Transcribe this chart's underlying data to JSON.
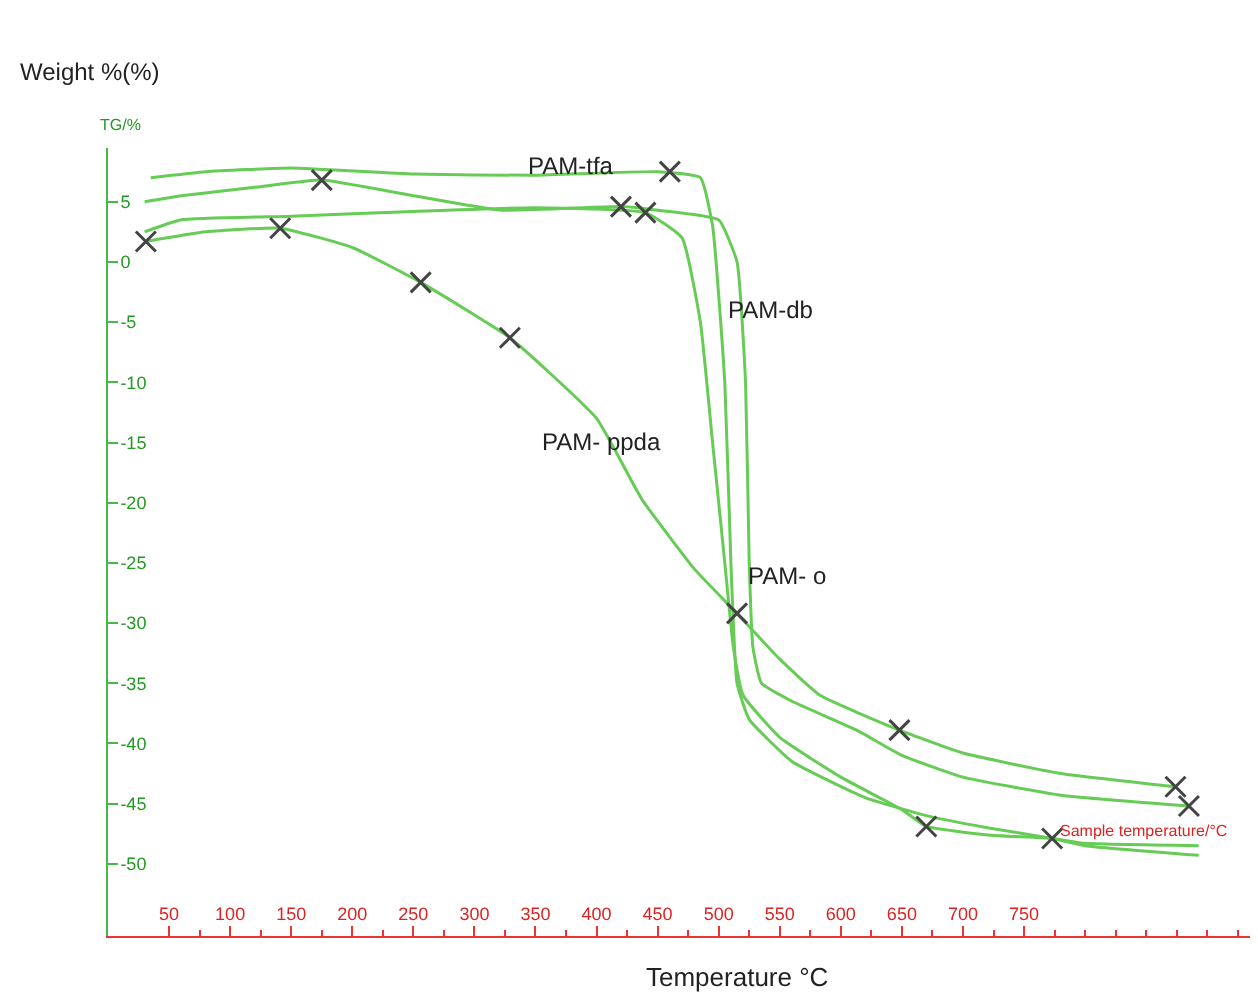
{
  "chart_data": {
    "type": "line",
    "xlabel": "Temperature °C",
    "ylabel": "Weight %(%)",
    "xlim": [
      0,
      935
    ],
    "ylim": [
      -56,
      9.5
    ],
    "xticks": [
      50,
      100,
      150,
      200,
      250,
      300,
      350,
      400,
      450,
      500,
      550,
      600,
      650,
      700,
      750
    ],
    "yticks": [
      5,
      0,
      -5,
      -10,
      -15,
      -20,
      -25,
      -30,
      -35,
      -40,
      -45,
      -50
    ],
    "line_style": "solid",
    "series": [
      {
        "color": "#66cc55",
        "x": [
          35,
          80,
          150,
          250,
          350,
          450,
          485,
          495,
          505,
          510,
          515,
          525,
          560,
          620,
          670,
          720,
          773,
          800,
          893
        ],
        "values": [
          7,
          7.5,
          7.8,
          7.3,
          7.2,
          7.5,
          7,
          3,
          -10,
          -25,
          -35,
          -38,
          -41.5,
          -44.5,
          -46,
          -47,
          -47.9,
          -48.5,
          -49.3
        ]
      },
      {
        "color": "#66cc55",
        "x": [
          30,
          60,
          120,
          175,
          250,
          322,
          420,
          450,
          500,
          515,
          522,
          525,
          528,
          535,
          560,
          613,
          650,
          700,
          780,
          885
        ],
        "values": [
          5,
          5.5,
          6.2,
          6.8,
          5.5,
          4.3,
          4.6,
          4.3,
          3.5,
          0,
          -10,
          -25,
          -32,
          -35,
          -36.5,
          -38.9,
          -41,
          -42.8,
          -44.3,
          -45.2
        ]
      },
      {
        "color": "#66cc55",
        "x": [
          31,
          80,
          141,
          200,
          256,
          329,
          400,
          437,
          480,
          515,
          550,
          583,
          648,
          700,
          780,
          874
        ],
        "values": [
          1.7,
          2.5,
          2.8,
          1.2,
          -1.7,
          -6.3,
          -13,
          -19.7,
          -25.5,
          -29.2,
          -33,
          -36,
          -38.9,
          -40.8,
          -42.5,
          -43.6
        ]
      },
      {
        "color": "#66cc55",
        "x": [
          30,
          60,
          150,
          250,
          350,
          440,
          470,
          485,
          495,
          505,
          512,
          520,
          550,
          600,
          650,
          670,
          720,
          773,
          800,
          893
        ],
        "values": [
          2.5,
          3.5,
          3.8,
          4.2,
          4.5,
          4.1,
          2,
          -5,
          -15,
          -25,
          -32,
          -36,
          -39.5,
          -42.8,
          -45.5,
          -46.9,
          -47.6,
          -47.9,
          -48.3,
          -48.5
        ]
      },
      {
        "type": "scatter",
        "marker": "cross",
        "color": "#444444",
        "x": [
          31,
          141,
          175,
          256,
          329,
          420,
          440,
          460,
          515,
          648,
          670,
          773,
          874,
          885
        ],
        "values": [
          1.7,
          2.8,
          6.8,
          -1.7,
          -6.3,
          4.6,
          4.1,
          7.5,
          -29.2,
          -38.9,
          -46.9,
          -47.9,
          -43.6,
          -45.2
        ]
      }
    ],
    "annotations": [
      "PAM-tfa",
      "PAM-db",
      "PAM- ppda",
      "PAM- o",
      "TG/%",
      "Sample temperature/°C"
    ]
  }
}
